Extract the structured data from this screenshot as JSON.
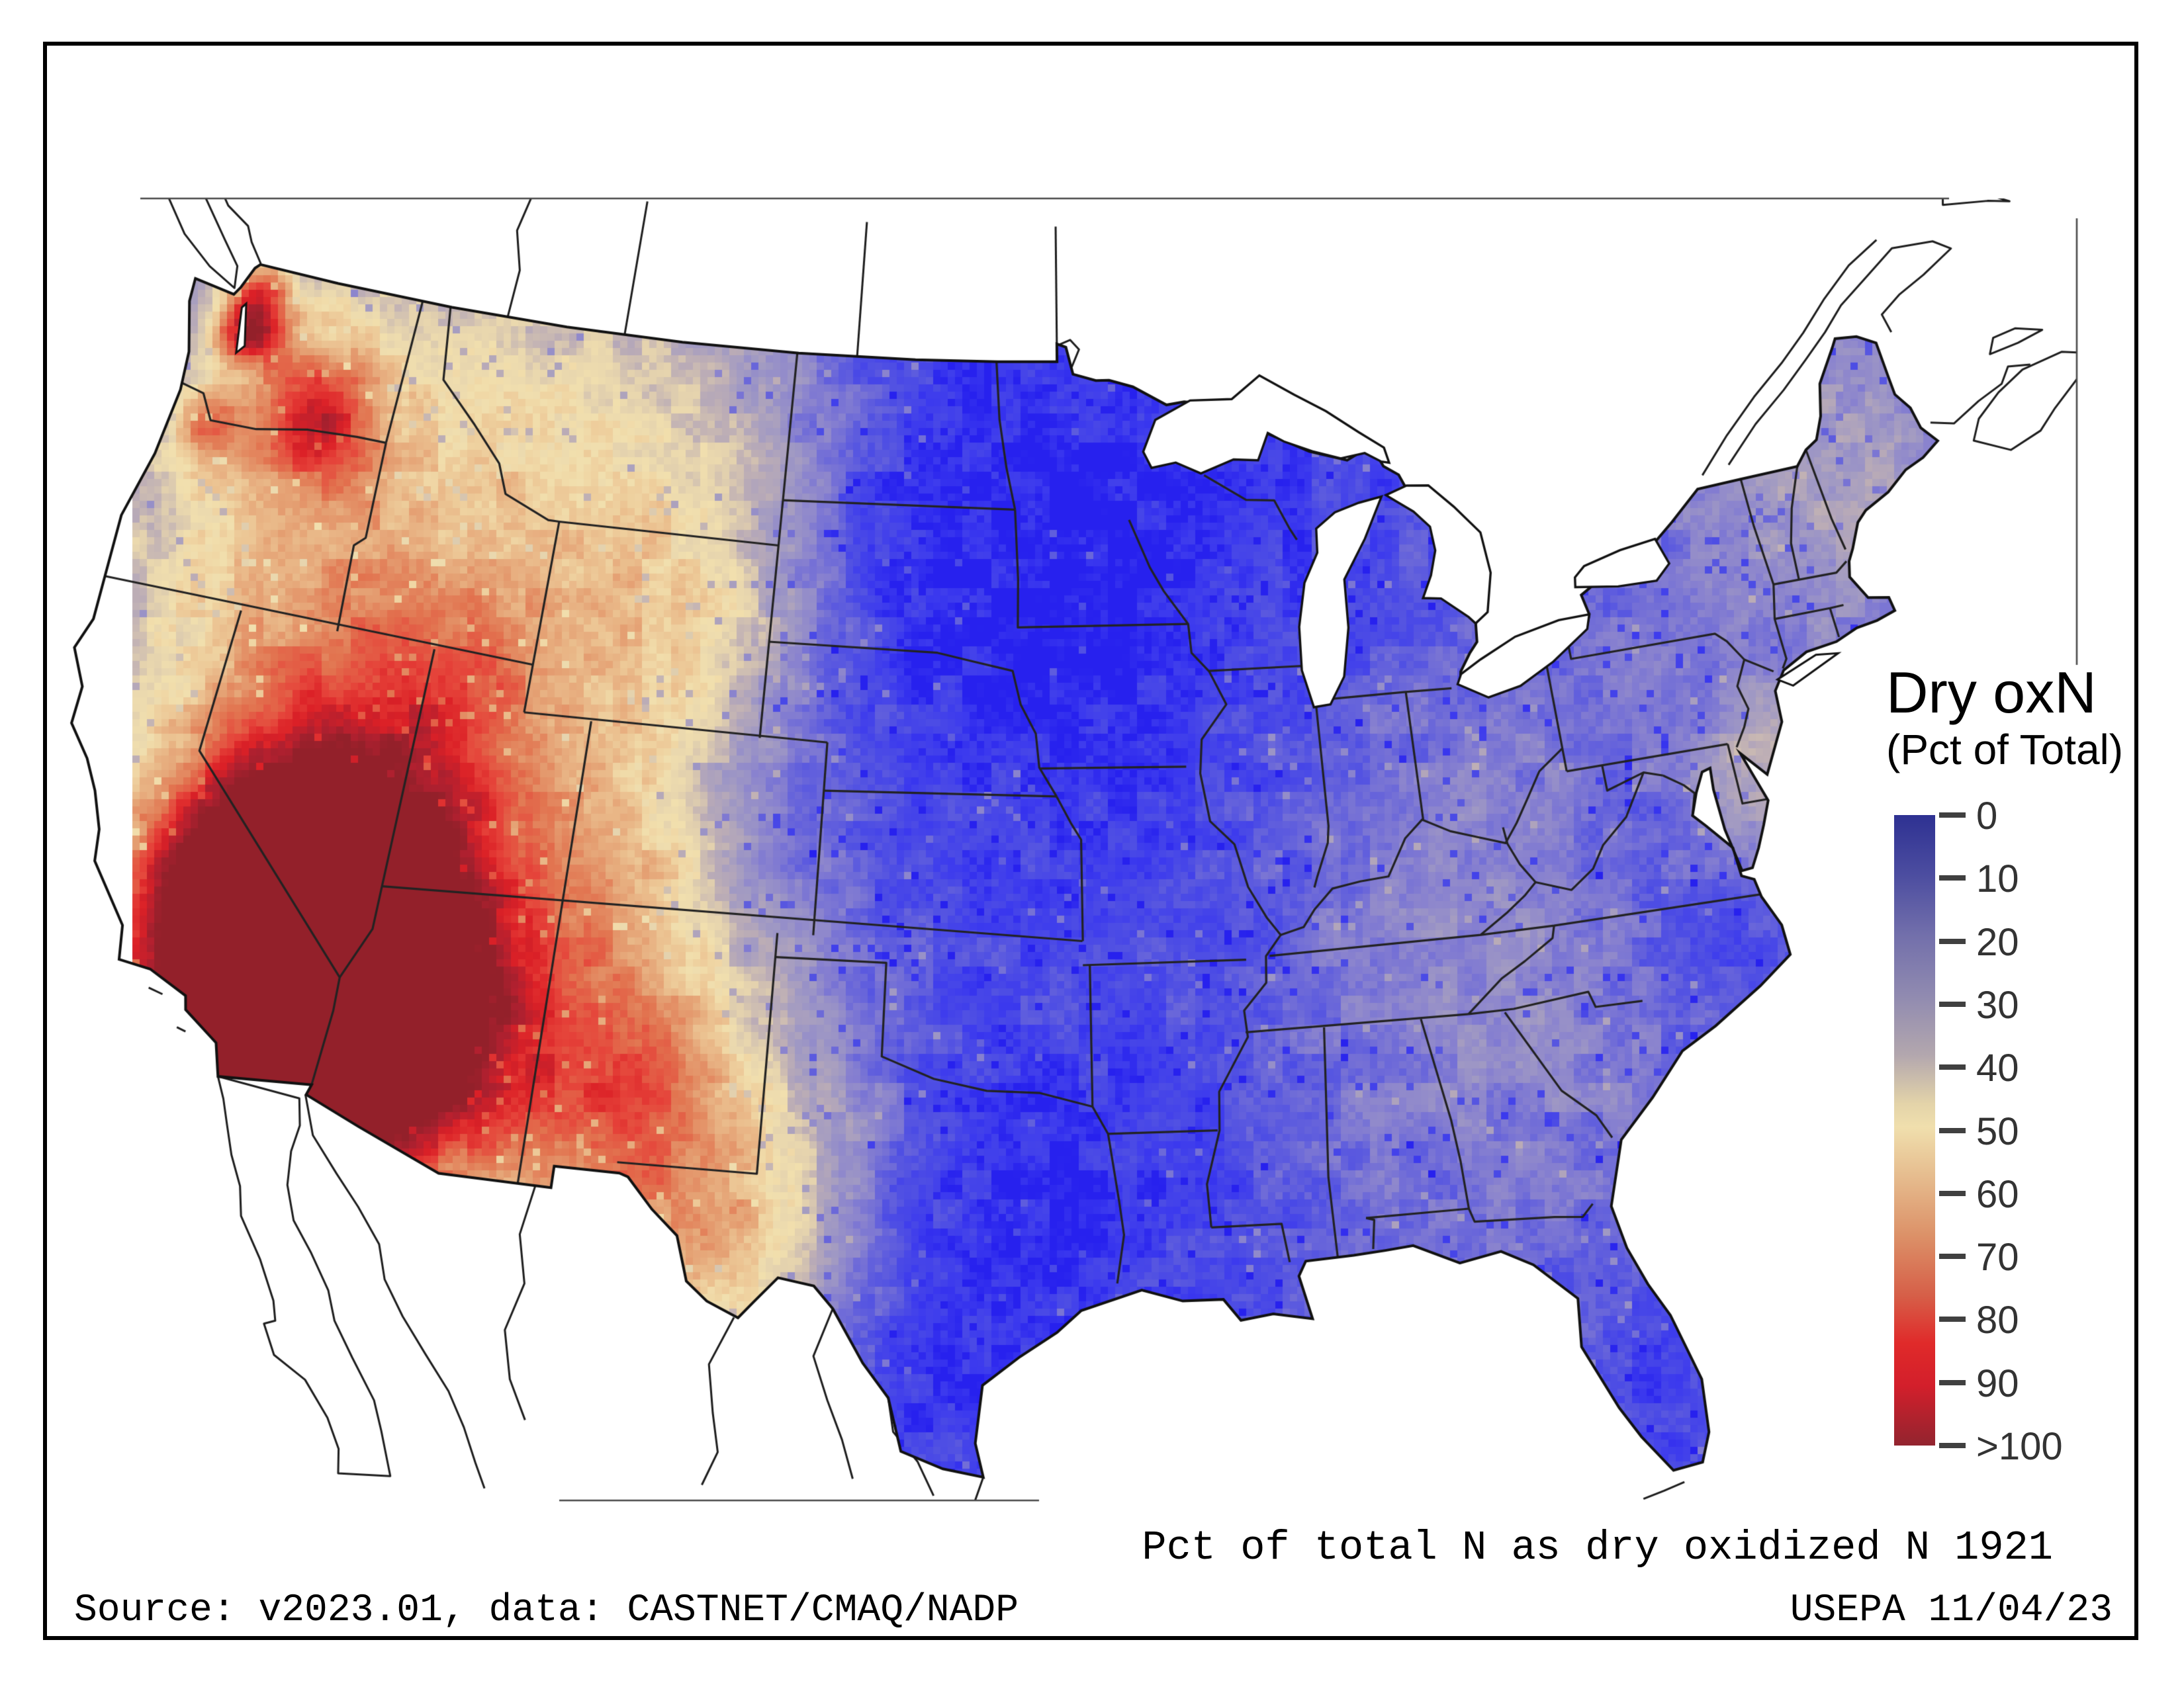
{
  "texts": {
    "caption": "Pct of total N as dry oxidized N 1921",
    "source": "Source: v2023.01, data: CASTNET/CMAQ/NADP",
    "agency": "USEPA 11/04/23"
  },
  "legend": {
    "title": "Dry oxN",
    "subtitle": "(Pct of Total)",
    "ticks": [
      "0",
      "10",
      "20",
      "30",
      "40",
      "50",
      "60",
      "70",
      "80",
      "90",
      ">100"
    ],
    "gradient_stops": [
      [
        0,
        "#2e3192"
      ],
      [
        10,
        "#4c4da0"
      ],
      [
        20,
        "#726fab"
      ],
      [
        30,
        "#908ab0"
      ],
      [
        40,
        "#b3a7ae"
      ],
      [
        48,
        "#e3d3a9"
      ],
      [
        52,
        "#f0dfad"
      ],
      [
        60,
        "#e6bd8f"
      ],
      [
        70,
        "#dc9168"
      ],
      [
        80,
        "#d65f48"
      ],
      [
        88,
        "#e02a2a"
      ],
      [
        95,
        "#d31f2b"
      ],
      [
        105,
        "#92242f"
      ]
    ]
  },
  "chart_data": {
    "type": "heatmap",
    "title": "Pct of total N as dry oxidized N 1921",
    "units": "percent of total N deposition",
    "legend_range": [
      0,
      100
    ],
    "legend_top_label": "0",
    "legend_bottom_label": ">100",
    "map_palette": [
      [
        0,
        "#2019ee"
      ],
      [
        6,
        "#3d3bee"
      ],
      [
        12,
        "#4f4fe4"
      ],
      [
        18,
        "#6a67da"
      ],
      [
        25,
        "#8a83cf"
      ],
      [
        32,
        "#a099c4"
      ],
      [
        40,
        "#bcadb6"
      ],
      [
        47,
        "#e4d2ae"
      ],
      [
        53,
        "#f2e0ae"
      ],
      [
        60,
        "#ecc493"
      ],
      [
        68,
        "#e5a073"
      ],
      [
        76,
        "#e27450"
      ],
      [
        85,
        "#e6433a"
      ],
      [
        92,
        "#dc2127"
      ],
      [
        100,
        "#b02030"
      ],
      [
        110,
        "#8c2029"
      ]
    ],
    "field": {
      "base_east_pct": 13,
      "base_west_pct": 32,
      "west_transition_lon": [
        -99,
        -107
      ],
      "hotspots": [
        [
          -122.4,
          47.7,
          0.55,
          55
        ],
        [
          -122.55,
          48.55,
          0.5,
          28
        ],
        [
          -119.4,
          46.3,
          0.8,
          30
        ],
        [
          -120.4,
          47.3,
          1.6,
          16
        ],
        [
          -122.7,
          45.5,
          0.5,
          26
        ],
        [
          -120.6,
          44.2,
          2.2,
          14
        ],
        [
          -118.9,
          45.7,
          1.5,
          12
        ],
        [
          -117.5,
          40.5,
          3.2,
          13
        ],
        [
          -116.6,
          38.6,
          2.4,
          20
        ],
        [
          -114.6,
          39.5,
          2.8,
          11
        ],
        [
          -112.9,
          39.6,
          2.2,
          11
        ],
        [
          -112.4,
          41.4,
          1.4,
          8
        ],
        [
          -114.6,
          42.9,
          2.4,
          13
        ],
        [
          -117.4,
          36.5,
          1.7,
          38
        ],
        [
          -116.4,
          35.6,
          2.0,
          46
        ],
        [
          -115.8,
          34.6,
          2.6,
          56
        ],
        [
          -114.9,
          33.5,
          2.2,
          52
        ],
        [
          -113.7,
          34.0,
          1.7,
          30
        ],
        [
          -112.3,
          33.4,
          1.9,
          16
        ],
        [
          -111.2,
          35.3,
          2.4,
          12
        ],
        [
          -113.6,
          36.6,
          1.7,
          15
        ],
        [
          -110.6,
          46.7,
          2.8,
          9
        ],
        [
          -108.2,
          45.8,
          2.4,
          7
        ],
        [
          -114.4,
          47.5,
          1.8,
          8
        ],
        [
          -107.6,
          43.3,
          2.4,
          11
        ],
        [
          -106.2,
          42.8,
          1.6,
          9
        ],
        [
          -108.1,
          39.4,
          1.7,
          9
        ],
        [
          -107.0,
          37.8,
          1.4,
          8
        ],
        [
          -104.9,
          39.8,
          1.4,
          -5
        ],
        [
          -108.4,
          36.4,
          2.3,
          15
        ],
        [
          -107.8,
          32.9,
          2.1,
          19
        ],
        [
          -106.3,
          33.9,
          1.5,
          12
        ],
        [
          -104.3,
          31.4,
          2.6,
          22
        ],
        [
          -102.6,
          32.8,
          2.4,
          10
        ],
        [
          -103.1,
          29.8,
          1.8,
          14
        ],
        [
          -93.8,
          45.2,
          5.5,
          -7
        ],
        [
          -93.9,
          41.9,
          4.0,
          -5
        ],
        [
          -97.8,
          44.3,
          3.0,
          -4
        ],
        [
          -98.3,
          30.8,
          2.4,
          -8
        ],
        [
          -95.8,
          31.6,
          2.8,
          -4
        ],
        [
          -99.8,
          27.6,
          1.8,
          -5
        ],
        [
          -77.6,
          35.3,
          1.5,
          -9
        ],
        [
          -79.2,
          38.1,
          1.1,
          -7
        ],
        [
          -81.0,
          26.6,
          2.0,
          -5
        ],
        [
          -74.3,
          43.9,
          1.7,
          -4
        ],
        [
          -79.5,
          38.0,
          4.5,
          7
        ],
        [
          -84.5,
          36.3,
          4.0,
          6
        ],
        [
          -84.3,
          32.6,
          3.5,
          5
        ],
        [
          -70.3,
          44.8,
          2.8,
          16
        ],
        [
          -72.5,
          44.3,
          2.2,
          8
        ],
        [
          -75.6,
          38.4,
          1.2,
          9
        ],
        [
          -74.55,
          39.6,
          0.8,
          17
        ],
        [
          -86.2,
          39.8,
          3.5,
          3
        ],
        [
          -114.3,
          33.8,
          0.5,
          -25
        ],
        [
          -91.9,
          32.6,
          2.5,
          -3
        ],
        [
          -100.6,
          38.4,
          3.0,
          2
        ],
        [
          -96.8,
          41.0,
          2.5,
          2
        ]
      ]
    },
    "colors": {
      "frame": "#000000",
      "state_border": "#222222",
      "national_outline": "#111111",
      "context_outline": "#1d1d1d",
      "window_edge": "#4a4a4a",
      "water": "#ffffff"
    }
  }
}
